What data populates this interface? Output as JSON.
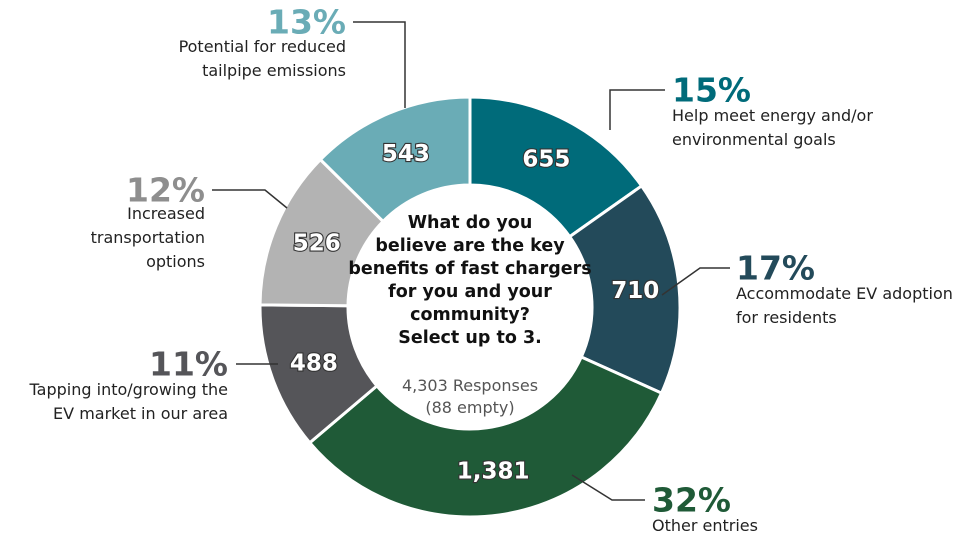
{
  "chart_data": {
    "type": "pie",
    "center_text": {
      "question_lines": [
        "What do you",
        "believe are the key",
        "benefits of fast chargers",
        "for you and your",
        "community?",
        "Select up to 3."
      ],
      "responses": "4,303 Responses",
      "empty": "(88 empty)"
    },
    "slices": [
      {
        "value": 655,
        "value_label": "655",
        "percent": "15%",
        "label_lines": [
          "Help meet energy and/or",
          "environmental goals"
        ],
        "color": "#006b7a"
      },
      {
        "value": 710,
        "value_label": "710",
        "percent": "17%",
        "label_lines": [
          "Accommodate EV adoption",
          "for residents"
        ],
        "color": "#234a5a"
      },
      {
        "value": 1381,
        "value_label": "1,381",
        "percent": "32%",
        "label_lines": [
          "Other entries"
        ],
        "color": "#1f5a37"
      },
      {
        "value": 488,
        "value_label": "488",
        "percent": "11%",
        "label_lines": [
          "Tapping into/growing the",
          "EV market in our area"
        ],
        "color": "#555559"
      },
      {
        "value": 526,
        "value_label": "526",
        "percent": "12%",
        "label_lines": [
          "Increased",
          "transportation",
          "options"
        ],
        "color": "#b3b3b3"
      },
      {
        "value": 543,
        "value_label": "543",
        "percent": "13%",
        "label_lines": [
          "Potential for reduced",
          "tailpipe emissions"
        ],
        "color": "#6aacb6"
      }
    ]
  }
}
